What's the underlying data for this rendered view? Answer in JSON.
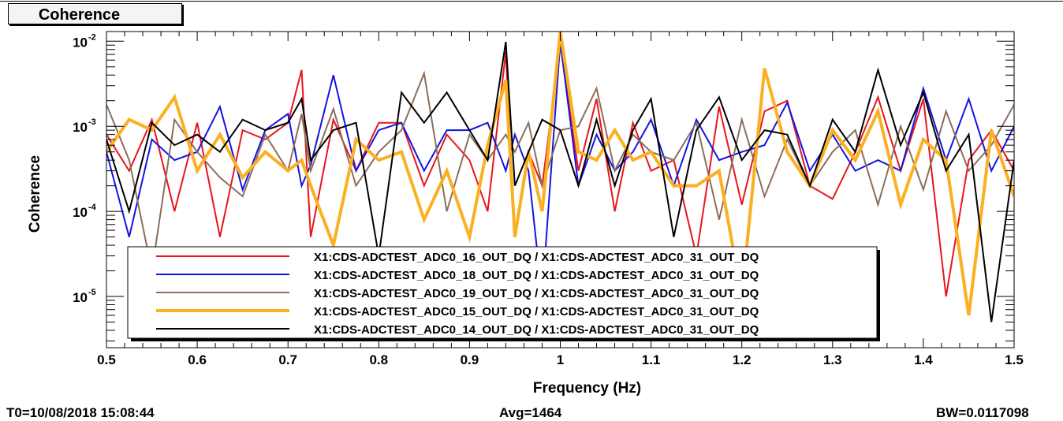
{
  "title": "Coherence",
  "footer": {
    "t0": "T0=10/08/2018 15:08:44",
    "avg": "Avg=1464",
    "bw": "BW=0.0117098"
  },
  "chart_data": {
    "type": "line",
    "xlabel": "Frequency (Hz)",
    "ylabel": "Coherence",
    "xlim": [
      0.5,
      1.5
    ],
    "ylim": [
      2.5e-06,
      0.013
    ],
    "yscale": "log",
    "grid": false,
    "legend_position": "bottom-center",
    "x_ticks": [
      0.5,
      0.6,
      0.7,
      0.8,
      0.9,
      1.0,
      1.1,
      1.2,
      1.3,
      1.4,
      1.5
    ],
    "x_tick_labels": [
      "0.5",
      "0.6",
      "0.7",
      "0.8",
      "0.9",
      "1",
      "1.1",
      "1.2",
      "1.3",
      "1.4",
      "1.5"
    ],
    "y_ticks": [
      1e-05,
      0.0001,
      0.001,
      0.01
    ],
    "y_tick_bases": [
      "10",
      "10",
      "10",
      "10"
    ],
    "y_tick_exps": [
      "-5",
      "-4",
      "-3",
      "-2"
    ],
    "x": [
      0.5,
      0.525,
      0.55,
      0.575,
      0.6,
      0.625,
      0.65,
      0.675,
      0.7,
      0.715,
      0.725,
      0.75,
      0.775,
      0.8,
      0.825,
      0.85,
      0.875,
      0.9,
      0.92,
      0.94,
      0.95,
      0.965,
      0.98,
      1.0,
      1.02,
      1.04,
      1.06,
      1.08,
      1.1,
      1.125,
      1.15,
      1.175,
      1.2,
      1.225,
      1.25,
      1.275,
      1.3,
      1.325,
      1.35,
      1.375,
      1.4,
      1.425,
      1.45,
      1.475,
      1.5
    ],
    "series": [
      {
        "name": "X1:CDS-ADCTEST_ADC0_16_OUT_DQ / X1:CDS-ADCTEST_ADC0_31_OUT_DQ",
        "color": "#e8141b",
        "width": 2,
        "values": [
          0.0008,
          0.0003,
          0.0012,
          0.0001,
          0.0011,
          5e-05,
          0.0009,
          0.0007,
          0.0011,
          0.0046,
          5e-05,
          0.0012,
          0.0003,
          0.0011,
          0.0011,
          0.0002,
          0.0008,
          0.0004,
          0.0001,
          0.0075,
          5e-05,
          0.0005,
          0.0002,
          0.0091,
          0.0003,
          0.0021,
          0.0001,
          0.0011,
          0.0003,
          0.0004,
          3e-05,
          0.0017,
          0.00012,
          0.0015,
          0.002,
          0.0002,
          0.00014,
          0.0005,
          0.0022,
          0.0003,
          0.0021,
          1e-05,
          0.0004,
          0.0009,
          0.0003
        ]
      },
      {
        "name": "X1:CDS-ADCTEST_ADC0_18_OUT_DQ / X1:CDS-ADCTEST_ADC0_31_OUT_DQ",
        "color": "#1414e0",
        "width": 2,
        "values": [
          0.0005,
          5e-05,
          0.0007,
          0.0004,
          0.0005,
          0.0017,
          0.00018,
          0.0009,
          0.0014,
          0.0002,
          0.00035,
          0.004,
          0.0003,
          0.0009,
          0.0011,
          0.0003,
          0.0009,
          0.0009,
          0.0011,
          0.0003,
          0.0008,
          0.0003,
          1e-05,
          0.0099,
          0.0002,
          0.0008,
          0.0003,
          0.0005,
          0.0012,
          0.0002,
          0.0012,
          0.0004,
          0.0005,
          0.0006,
          0.0019,
          0.0003,
          0.0008,
          0.0003,
          0.0004,
          0.0003,
          0.0028,
          0.0004,
          0.0021,
          0.0003,
          0.001
        ]
      },
      {
        "name": "X1:CDS-ADCTEST_ADC0_19_OUT_DQ / X1:CDS-ADCTEST_ADC0_31_OUT_DQ",
        "color": "#8b6e5c",
        "width": 2,
        "values": [
          0.0018,
          0.0004,
          2e-05,
          0.0012,
          0.0005,
          0.00025,
          0.00015,
          0.0008,
          0.0003,
          0.0014,
          0.0003,
          0.0016,
          0.0002,
          0.0005,
          0.0009,
          0.0042,
          0.0001,
          0.0008,
          0.0004,
          0.0008,
          0.0005,
          0.0011,
          0.0002,
          0.0009,
          0.001,
          0.0028,
          0.0003,
          0.0008,
          0.0005,
          0.0004,
          0.0011,
          8e-05,
          0.0012,
          0.00015,
          0.0007,
          0.0002,
          0.0005,
          0.0009,
          0.00012,
          0.001,
          0.00018,
          0.0015,
          0.0003,
          0.0006,
          0.0018
        ]
      },
      {
        "name": "X1:CDS-ADCTEST_ADC0_15_OUT_DQ / X1:CDS-ADCTEST_ADC0_31_OUT_DQ",
        "color": "#fbb021",
        "width": 4,
        "values": [
          0.0005,
          0.0012,
          0.0009,
          0.0022,
          0.0003,
          0.0008,
          0.00025,
          0.0005,
          0.0003,
          0.0004,
          0.0002,
          4e-05,
          0.0007,
          0.0004,
          0.0005,
          8e-05,
          0.0003,
          5e-05,
          0.0006,
          0.0035,
          5e-05,
          0.0005,
          0.0001,
          0.013,
          0.0005,
          0.0004,
          0.0009,
          0.0004,
          0.0005,
          0.0002,
          0.0002,
          0.0003,
          1e-05,
          0.0048,
          0.0005,
          0.0002,
          0.0009,
          0.0004,
          0.0015,
          0.00012,
          0.0007,
          0.0004,
          6e-06,
          0.0009,
          0.00015
        ]
      },
      {
        "name": "X1:CDS-ADCTEST_ADC0_14_OUT_DQ / X1:CDS-ADCTEST_ADC0_31_OUT_DQ",
        "color": "#000000",
        "width": 2,
        "values": [
          0.0007,
          0.0001,
          0.0011,
          0.0006,
          0.0008,
          0.0005,
          0.0012,
          0.0009,
          0.0011,
          0.0021,
          0.0004,
          0.0009,
          0.0011,
          3e-05,
          0.0025,
          0.0011,
          0.0025,
          0.0009,
          0.0004,
          0.0098,
          0.0002,
          0.0005,
          0.0012,
          0.0009,
          0.0002,
          0.0012,
          0.0002,
          0.0009,
          0.0021,
          5e-05,
          0.0009,
          0.0022,
          0.0004,
          0.0009,
          0.0008,
          0.0002,
          0.0012,
          0.0005,
          0.0046,
          0.0006,
          0.0025,
          0.0003,
          0.0008,
          5e-06,
          0.0004
        ]
      }
    ]
  }
}
